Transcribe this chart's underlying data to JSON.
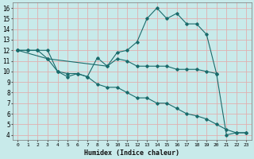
{
  "xlabel": "Humidex (Indice chaleur)",
  "bg_color": "#c8eaea",
  "grid_color": "#e0b0b0",
  "line_color": "#1a6b6b",
  "xlim": [
    -0.5,
    23.5
  ],
  "ylim": [
    3.5,
    16.5
  ],
  "xticks": [
    0,
    1,
    2,
    3,
    4,
    5,
    6,
    7,
    8,
    9,
    10,
    11,
    12,
    13,
    14,
    15,
    16,
    17,
    18,
    19,
    20,
    21,
    22,
    23
  ],
  "yticks": [
    4,
    5,
    6,
    7,
    8,
    9,
    10,
    11,
    12,
    13,
    14,
    15,
    16
  ],
  "line1_x": [
    0,
    1,
    2,
    3,
    4,
    5,
    6,
    7,
    8,
    9,
    10,
    11,
    12,
    13,
    14,
    15,
    16,
    17,
    18,
    19,
    20,
    21,
    22,
    23
  ],
  "line1_y": [
    12,
    12,
    12,
    12,
    10,
    9.8,
    9.8,
    9.5,
    11.3,
    10.5,
    11.8,
    12,
    12.8,
    15,
    16,
    15,
    15.5,
    14.5,
    14.5,
    13.5,
    9.8,
    4,
    4.2,
    4.2
  ],
  "line2_x": [
    0,
    1,
    2,
    3,
    9,
    10,
    11,
    12,
    13,
    14,
    15,
    16,
    17,
    18,
    19,
    20
  ],
  "line2_y": [
    12,
    12,
    12,
    11.2,
    10.5,
    11.2,
    11.0,
    10.5,
    10.5,
    10.5,
    10.5,
    10.2,
    10.2,
    10.2,
    10.0,
    9.8
  ],
  "line3_x": [
    0,
    3,
    4,
    5,
    6,
    7,
    8,
    9,
    10,
    11,
    12,
    13,
    14,
    15,
    16,
    17,
    18,
    19,
    20,
    21,
    22,
    23
  ],
  "line3_y": [
    12,
    11.2,
    10,
    9.5,
    9.8,
    9.5,
    8.8,
    8.5,
    8.5,
    8,
    7.5,
    7.5,
    7,
    7,
    6.5,
    6.0,
    5.8,
    5.5,
    5.0,
    4.5,
    4.2,
    4.2
  ]
}
